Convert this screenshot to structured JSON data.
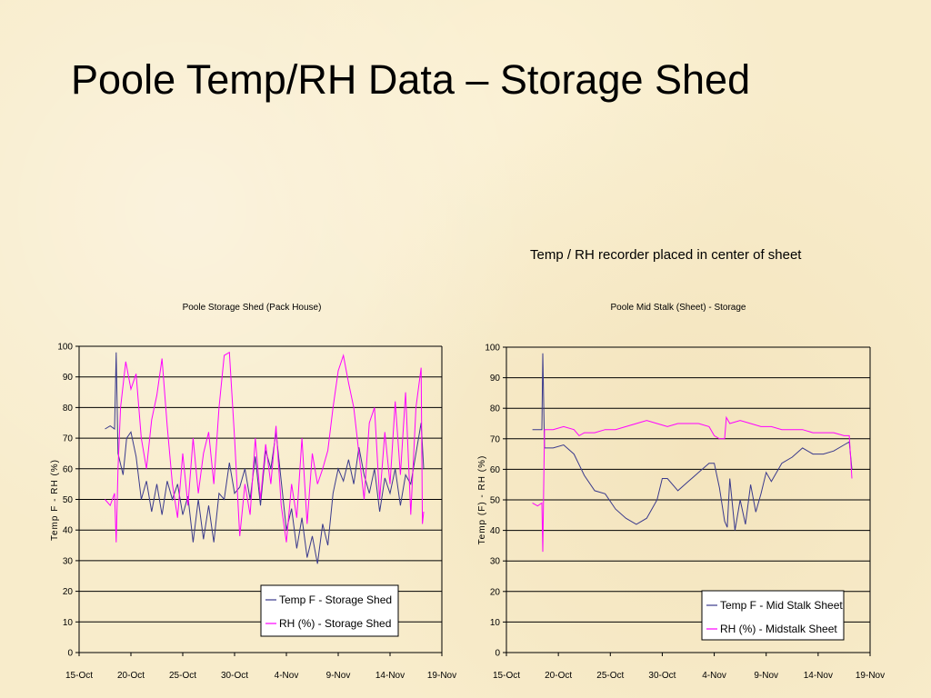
{
  "slide": {
    "title": "Poole Temp/RH Data – Storage Shed",
    "note": "Temp / RH recorder placed in center of sheet"
  },
  "chart_data": [
    {
      "type": "line",
      "title": "Poole Storage Shed (Pack House)",
      "ylabel": "Temp F - RH (%)",
      "xlabel": "",
      "ylim": [
        0,
        100
      ],
      "yticks": [
        0,
        10,
        20,
        30,
        40,
        50,
        60,
        70,
        80,
        90,
        100
      ],
      "xlim": [
        "15-Oct",
        "19-Nov"
      ],
      "xticks": [
        "15-Oct",
        "20-Oct",
        "25-Oct",
        "30-Oct",
        "4-Nov",
        "9-Nov",
        "14-Nov",
        "19-Nov"
      ],
      "grid": "horizontal",
      "legend": "bottom-right",
      "series": [
        {
          "name": "Temp F - Storage Shed",
          "color": "#3a3a8c",
          "points": [
            [
              "2024-10-17 12:00",
              73
            ],
            [
              "2024-10-18 00:00",
              74
            ],
            [
              "2024-10-18 10:00",
              73
            ],
            [
              "2024-10-18 14:00",
              98
            ],
            [
              "2024-10-18 18:00",
              65
            ],
            [
              "2024-10-19 06:00",
              58
            ],
            [
              "2024-10-19 14:00",
              70
            ],
            [
              "2024-10-20 00:00",
              72
            ],
            [
              "2024-10-20 12:00",
              64
            ],
            [
              "2024-10-21 00:00",
              50
            ],
            [
              "2024-10-21 12:00",
              56
            ],
            [
              "2024-10-22 00:00",
              46
            ],
            [
              "2024-10-22 12:00",
              55
            ],
            [
              "2024-10-23 00:00",
              45
            ],
            [
              "2024-10-23 12:00",
              56
            ],
            [
              "2024-10-24 00:00",
              50
            ],
            [
              "2024-10-24 12:00",
              55
            ],
            [
              "2024-10-25 00:00",
              45
            ],
            [
              "2024-10-25 12:00",
              51
            ],
            [
              "2024-10-26 00:00",
              36
            ],
            [
              "2024-10-26 12:00",
              50
            ],
            [
              "2024-10-27 00:00",
              37
            ],
            [
              "2024-10-27 12:00",
              48
            ],
            [
              "2024-10-28 00:00",
              36
            ],
            [
              "2024-10-28 12:00",
              52
            ],
            [
              "2024-10-29 00:00",
              50
            ],
            [
              "2024-10-29 12:00",
              62
            ],
            [
              "2024-10-30 00:00",
              52
            ],
            [
              "2024-10-30 12:00",
              54
            ],
            [
              "2024-10-31 00:00",
              60
            ],
            [
              "2024-10-31 12:00",
              50
            ],
            [
              "2024-11-01 00:00",
              64
            ],
            [
              "2024-11-01 12:00",
              48
            ],
            [
              "2024-11-02 00:00",
              66
            ],
            [
              "2024-11-02 12:00",
              60
            ],
            [
              "2024-11-03 00:00",
              72
            ],
            [
              "2024-11-03 12:00",
              56
            ],
            [
              "2024-11-04 00:00",
              40
            ],
            [
              "2024-11-04 12:00",
              47
            ],
            [
              "2024-11-05 00:00",
              34
            ],
            [
              "2024-11-05 12:00",
              44
            ],
            [
              "2024-11-06 00:00",
              31
            ],
            [
              "2024-11-06 12:00",
              38
            ],
            [
              "2024-11-07 00:00",
              29
            ],
            [
              "2024-11-07 12:00",
              42
            ],
            [
              "2024-11-08 00:00",
              35
            ],
            [
              "2024-11-08 12:00",
              52
            ],
            [
              "2024-11-09 00:00",
              60
            ],
            [
              "2024-11-09 12:00",
              56
            ],
            [
              "2024-11-10 00:00",
              63
            ],
            [
              "2024-11-10 12:00",
              55
            ],
            [
              "2024-11-11 00:00",
              67
            ],
            [
              "2024-11-11 12:00",
              58
            ],
            [
              "2024-11-12 00:00",
              52
            ],
            [
              "2024-11-12 12:00",
              60
            ],
            [
              "2024-11-13 00:00",
              46
            ],
            [
              "2024-11-13 12:00",
              57
            ],
            [
              "2024-11-14 00:00",
              52
            ],
            [
              "2024-11-14 12:00",
              60
            ],
            [
              "2024-11-15 00:00",
              48
            ],
            [
              "2024-11-15 12:00",
              58
            ],
            [
              "2024-11-16 00:00",
              55
            ],
            [
              "2024-11-16 12:00",
              65
            ],
            [
              "2024-11-17 00:00",
              75
            ],
            [
              "2024-11-17 06:00",
              60
            ]
          ]
        },
        {
          "name": "RH (%) - Storage Shed",
          "color": "#ff00ff",
          "points": [
            [
              "2024-10-17 12:00",
              50
            ],
            [
              "2024-10-18 00:00",
              48
            ],
            [
              "2024-10-18 10:00",
              52
            ],
            [
              "2024-10-18 14:00",
              36
            ],
            [
              "2024-10-18 18:00",
              60
            ],
            [
              "2024-10-19 00:00",
              80
            ],
            [
              "2024-10-19 12:00",
              95
            ],
            [
              "2024-10-20 00:00",
              86
            ],
            [
              "2024-10-20 12:00",
              91
            ],
            [
              "2024-10-21 00:00",
              70
            ],
            [
              "2024-10-21 12:00",
              60
            ],
            [
              "2024-10-22 00:00",
              76
            ],
            [
              "2024-10-22 12:00",
              84
            ],
            [
              "2024-10-23 00:00",
              96
            ],
            [
              "2024-10-23 12:00",
              74
            ],
            [
              "2024-10-24 00:00",
              55
            ],
            [
              "2024-10-24 12:00",
              44
            ],
            [
              "2024-10-25 00:00",
              65
            ],
            [
              "2024-10-25 12:00",
              48
            ],
            [
              "2024-10-26 00:00",
              70
            ],
            [
              "2024-10-26 12:00",
              52
            ],
            [
              "2024-10-27 00:00",
              65
            ],
            [
              "2024-10-27 12:00",
              72
            ],
            [
              "2024-10-28 00:00",
              55
            ],
            [
              "2024-10-28 12:00",
              80
            ],
            [
              "2024-10-29 00:00",
              97
            ],
            [
              "2024-10-29 12:00",
              98
            ],
            [
              "2024-10-30 00:00",
              70
            ],
            [
              "2024-10-30 12:00",
              38
            ],
            [
              "2024-10-31 00:00",
              55
            ],
            [
              "2024-10-31 12:00",
              45
            ],
            [
              "2024-11-01 00:00",
              70
            ],
            [
              "2024-11-01 12:00",
              50
            ],
            [
              "2024-11-02 00:00",
              68
            ],
            [
              "2024-11-02 12:00",
              55
            ],
            [
              "2024-11-03 00:00",
              74
            ],
            [
              "2024-11-03 12:00",
              48
            ],
            [
              "2024-11-04 00:00",
              36
            ],
            [
              "2024-11-04 12:00",
              55
            ],
            [
              "2024-11-05 00:00",
              44
            ],
            [
              "2024-11-05 12:00",
              70
            ],
            [
              "2024-11-06 00:00",
              42
            ],
            [
              "2024-11-06 12:00",
              65
            ],
            [
              "2024-11-07 00:00",
              55
            ],
            [
              "2024-11-07 12:00",
              60
            ],
            [
              "2024-11-08 00:00",
              66
            ],
            [
              "2024-11-08 12:00",
              80
            ],
            [
              "2024-11-09 00:00",
              92
            ],
            [
              "2024-11-09 12:00",
              97
            ],
            [
              "2024-11-10 00:00",
              88
            ],
            [
              "2024-11-10 12:00",
              80
            ],
            [
              "2024-11-11 00:00",
              65
            ],
            [
              "2024-11-11 12:00",
              50
            ],
            [
              "2024-11-12 00:00",
              75
            ],
            [
              "2024-11-12 12:00",
              80
            ],
            [
              "2024-11-13 00:00",
              50
            ],
            [
              "2024-11-13 12:00",
              72
            ],
            [
              "2024-11-14 00:00",
              55
            ],
            [
              "2024-11-14 12:00",
              82
            ],
            [
              "2024-11-15 00:00",
              58
            ],
            [
              "2024-11-15 12:00",
              85
            ],
            [
              "2024-11-16 00:00",
              45
            ],
            [
              "2024-11-16 12:00",
              80
            ],
            [
              "2024-11-17 00:00",
              93
            ],
            [
              "2024-11-17 03:00",
              42
            ],
            [
              "2024-11-17 06:00",
              46
            ]
          ]
        }
      ]
    },
    {
      "type": "line",
      "title": "Poole Mid Stalk (Sheet) - Storage",
      "ylabel": "Temp (F) - RH (%)",
      "xlabel": "",
      "ylim": [
        0,
        100
      ],
      "yticks": [
        0,
        10,
        20,
        30,
        40,
        50,
        60,
        70,
        80,
        90,
        100
      ],
      "xlim": [
        "15-Oct",
        "19-Nov"
      ],
      "xticks": [
        "15-Oct",
        "20-Oct",
        "25-Oct",
        "30-Oct",
        "4-Nov",
        "9-Nov",
        "14-Nov",
        "19-Nov"
      ],
      "grid": "horizontal",
      "legend": "bottom-right",
      "series": [
        {
          "name": "Temp F - Mid Stalk Sheet",
          "color": "#3a3a8c",
          "points": [
            [
              "2024-10-17 12:00",
              73
            ],
            [
              "2024-10-18 00:00",
              73
            ],
            [
              "2024-10-18 10:00",
              73
            ],
            [
              "2024-10-18 12:00",
              98
            ],
            [
              "2024-10-18 16:00",
              67
            ],
            [
              "2024-10-19 12:00",
              67
            ],
            [
              "2024-10-20 12:00",
              68
            ],
            [
              "2024-10-21 12:00",
              65
            ],
            [
              "2024-10-22 12:00",
              58
            ],
            [
              "2024-10-23 12:00",
              53
            ],
            [
              "2024-10-24 12:00",
              52
            ],
            [
              "2024-10-25 12:00",
              47
            ],
            [
              "2024-10-26 12:00",
              44
            ],
            [
              "2024-10-27 12:00",
              42
            ],
            [
              "2024-10-28 12:00",
              44
            ],
            [
              "2024-10-29 12:00",
              50
            ],
            [
              "2024-10-30 00:00",
              57
            ],
            [
              "2024-10-30 12:00",
              57
            ],
            [
              "2024-10-31 12:00",
              53
            ],
            [
              "2024-11-01 12:00",
              56
            ],
            [
              "2024-11-02 12:00",
              59
            ],
            [
              "2024-11-03 12:00",
              62
            ],
            [
              "2024-11-04 00:00",
              62
            ],
            [
              "2024-11-04 12:00",
              54
            ],
            [
              "2024-11-05 00:00",
              43
            ],
            [
              "2024-11-05 06:00",
              41
            ],
            [
              "2024-11-05 12:00",
              57
            ],
            [
              "2024-11-06 00:00",
              40
            ],
            [
              "2024-11-06 12:00",
              50
            ],
            [
              "2024-11-07 00:00",
              42
            ],
            [
              "2024-11-07 12:00",
              55
            ],
            [
              "2024-11-08 00:00",
              46
            ],
            [
              "2024-11-08 12:00",
              52
            ],
            [
              "2024-11-09 00:00",
              59
            ],
            [
              "2024-11-09 12:00",
              56
            ],
            [
              "2024-11-10 12:00",
              62
            ],
            [
              "2024-11-11 12:00",
              64
            ],
            [
              "2024-11-12 12:00",
              67
            ],
            [
              "2024-11-13 12:00",
              65
            ],
            [
              "2024-11-14 12:00",
              65
            ],
            [
              "2024-11-15 12:00",
              66
            ],
            [
              "2024-11-16 12:00",
              68
            ],
            [
              "2024-11-17 00:00",
              69
            ],
            [
              "2024-11-17 06:00",
              60
            ]
          ]
        },
        {
          "name": "RH (%) - Midstalk Sheet",
          "color": "#ff00ff",
          "points": [
            [
              "2024-10-17 12:00",
              49
            ],
            [
              "2024-10-18 00:00",
              48
            ],
            [
              "2024-10-18 10:00",
              49
            ],
            [
              "2024-10-18 12:00",
              33
            ],
            [
              "2024-10-18 16:00",
              73
            ],
            [
              "2024-10-19 12:00",
              73
            ],
            [
              "2024-10-20 12:00",
              74
            ],
            [
              "2024-10-21 12:00",
              73
            ],
            [
              "2024-10-22 00:00",
              71
            ],
            [
              "2024-10-22 12:00",
              72
            ],
            [
              "2024-10-23 12:00",
              72
            ],
            [
              "2024-10-24 12:00",
              73
            ],
            [
              "2024-10-25 12:00",
              73
            ],
            [
              "2024-10-26 12:00",
              74
            ],
            [
              "2024-10-27 12:00",
              75
            ],
            [
              "2024-10-28 12:00",
              76
            ],
            [
              "2024-10-29 12:00",
              75
            ],
            [
              "2024-10-30 12:00",
              74
            ],
            [
              "2024-10-31 12:00",
              75
            ],
            [
              "2024-11-01 12:00",
              75
            ],
            [
              "2024-11-02 12:00",
              75
            ],
            [
              "2024-11-03 12:00",
              74
            ],
            [
              "2024-11-04 00:00",
              71
            ],
            [
              "2024-11-04 12:00",
              70
            ],
            [
              "2024-11-05 00:00",
              70
            ],
            [
              "2024-11-05 04:00",
              77
            ],
            [
              "2024-11-05 12:00",
              75
            ],
            [
              "2024-11-06 12:00",
              76
            ],
            [
              "2024-11-07 12:00",
              75
            ],
            [
              "2024-11-08 12:00",
              74
            ],
            [
              "2024-11-09 12:00",
              74
            ],
            [
              "2024-11-10 12:00",
              73
            ],
            [
              "2024-11-11 12:00",
              73
            ],
            [
              "2024-11-12 12:00",
              73
            ],
            [
              "2024-11-13 12:00",
              72
            ],
            [
              "2024-11-14 12:00",
              72
            ],
            [
              "2024-11-15 12:00",
              72
            ],
            [
              "2024-11-16 12:00",
              71
            ],
            [
              "2024-11-17 00:00",
              71
            ],
            [
              "2024-11-17 06:00",
              57
            ]
          ]
        }
      ]
    }
  ]
}
